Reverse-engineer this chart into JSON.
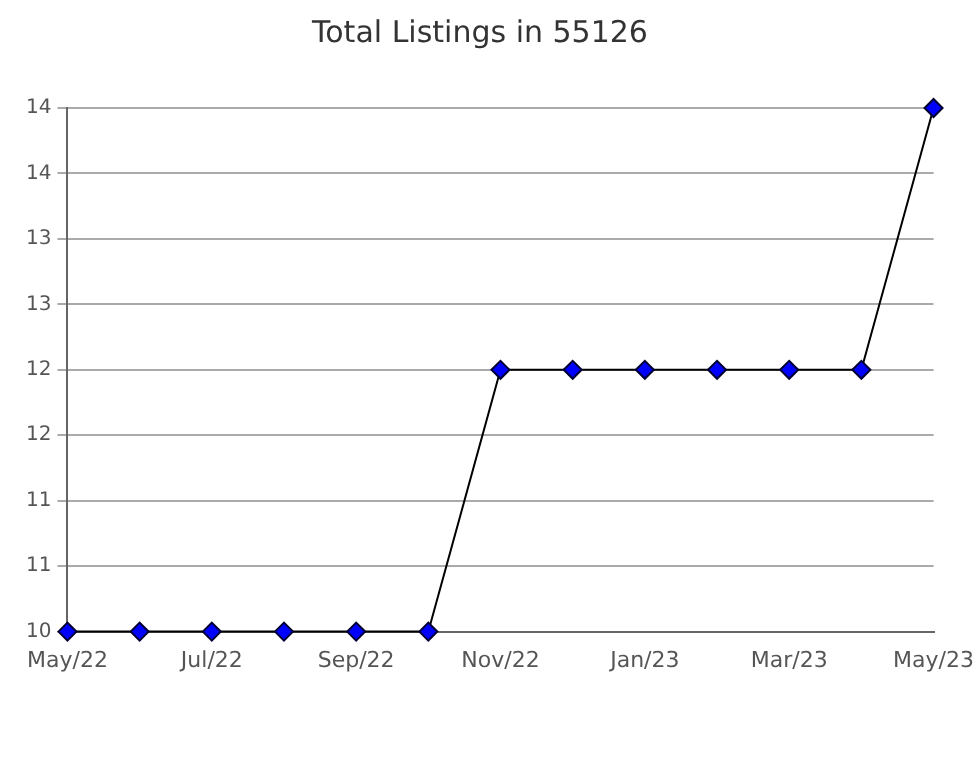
{
  "chart_data": {
    "type": "line",
    "title": "Total Listings in 55126",
    "categories": [
      "May/22",
      null,
      "Jul/22",
      null,
      "Sep/22",
      null,
      "Nov/22",
      null,
      "Jan/23",
      null,
      "Mar/23",
      null,
      "May/23"
    ],
    "series": [
      {
        "color": "#0000ff",
        "values": [
          10,
          10,
          10,
          10,
          10,
          10,
          12,
          12,
          12,
          12,
          12,
          12,
          14
        ]
      }
    ],
    "ylim": [
      10,
      14
    ],
    "yticks": [
      10,
      {
        "value": 10.5,
        "label": "11"
      },
      11,
      {
        "value": 11.5,
        "label": "12"
      },
      12,
      {
        "value": 12.5,
        "label": "13"
      },
      13,
      {
        "value": 13.5,
        "label": "14"
      },
      14
    ],
    "grid": "y",
    "marker": "diamond",
    "line_style": "solid",
    "legend": false
  }
}
